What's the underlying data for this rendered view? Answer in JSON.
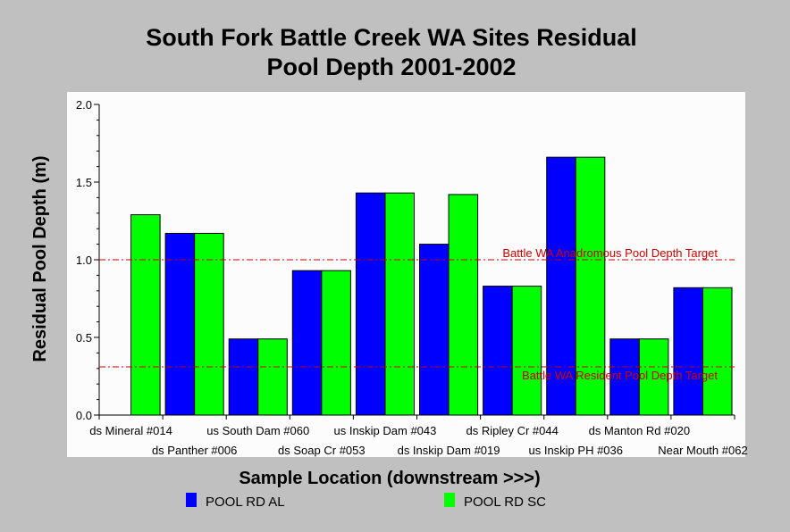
{
  "chart_data": {
    "type": "bar",
    "title_line1": "South Fork Battle Creek WA Sites Residual",
    "title_line2": "Pool Depth 2001-2002",
    "xlabel": "Sample Location (downstream >>>)",
    "ylabel": "Residual Pool Depth (m)",
    "ylim": [
      0,
      2.0
    ],
    "yticks": [
      "0.0",
      "0.5",
      "1.0",
      "1.5",
      "2.0"
    ],
    "categories": [
      "ds Mineral #014",
      "ds Panther #006",
      "us South Dam #060",
      "ds Soap Cr #053",
      "us Inskip Dam #043",
      "ds Inskip Dam #019",
      "ds Ripley Cr #044",
      "us Inskip PH #036",
      "ds Manton Rd #020",
      "Near Mouth #062"
    ],
    "series": [
      {
        "name": "POOL RD AL",
        "color": "#0000ff",
        "values": [
          null,
          1.17,
          0.49,
          0.93,
          1.43,
          1.1,
          0.83,
          1.66,
          0.49,
          0.82
        ]
      },
      {
        "name": "POOL RD SC",
        "color": "#00ff00",
        "values": [
          1.29,
          1.17,
          0.49,
          0.93,
          1.43,
          1.42,
          0.83,
          1.66,
          0.49,
          0.82
        ]
      }
    ],
    "reference_lines": [
      {
        "label": "Battle WA Anadromous Pool Depth Target",
        "value": 1.0,
        "color": "#cc0000"
      },
      {
        "label": "Battle WA Resident Pool Depth Target",
        "value": 0.31,
        "color": "#cc0000"
      }
    ],
    "grid": false,
    "legend_position": "bottom"
  }
}
